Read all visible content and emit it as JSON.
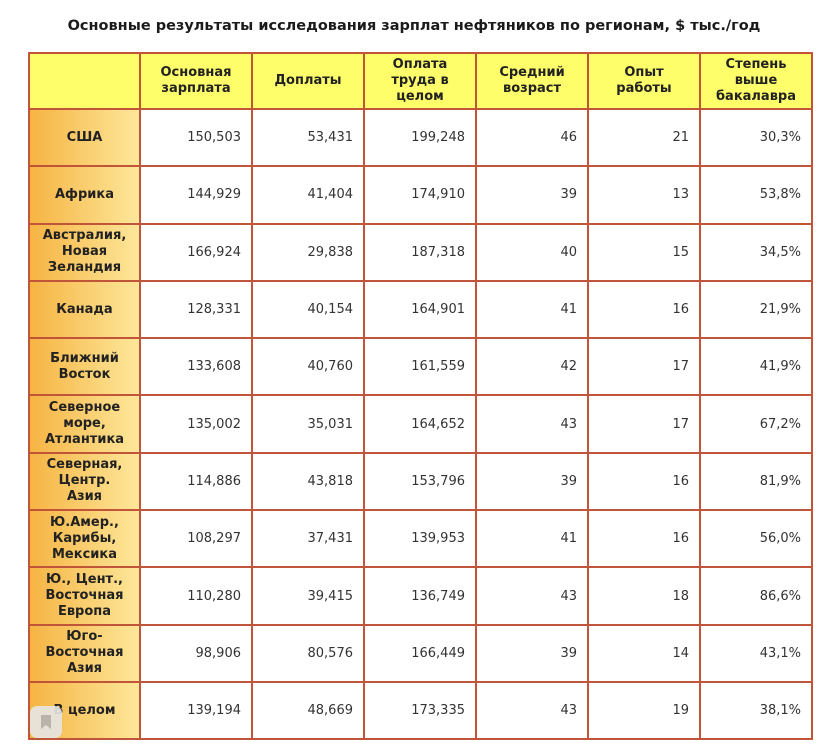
{
  "title": "Основные результаты исследования зарплат нефтяников по регионам, $ тыс./год",
  "table": {
    "columns": [
      "Основная зарплата",
      "Доплаты",
      "Оплата труда в целом",
      "Средний возраст",
      "Опыт работы",
      "Степень выше бакалавра"
    ],
    "rows": [
      [
        "США",
        "150,503",
        "53,431",
        "199,248",
        "46",
        "21",
        "30,3%"
      ],
      [
        "Африка",
        "144,929",
        "41,404",
        "174,910",
        "39",
        "13",
        "53,8%"
      ],
      [
        "Австралия, Новая Зеландия",
        "166,924",
        "29,838",
        "187,318",
        "40",
        "15",
        "34,5%"
      ],
      [
        "Канада",
        "128,331",
        "40,154",
        "164,901",
        "41",
        "16",
        "21,9%"
      ],
      [
        "Ближний Восток",
        "133,608",
        "40,760",
        "161,559",
        "42",
        "17",
        "41,9%"
      ],
      [
        "Северное море, Атлантика",
        "135,002",
        "35,031",
        "164,652",
        "43",
        "17",
        "67,2%"
      ],
      [
        "Северная, Центр. Азия",
        "114,886",
        "43,818",
        "153,796",
        "39",
        "16",
        "81,9%"
      ],
      [
        "Ю.Амер., Карибы, Мексика",
        "108,297",
        "37,431",
        "139,953",
        "41",
        "16",
        "56,0%"
      ],
      [
        "Ю., Цент., Восточная Европа",
        "110,280",
        "39,415",
        "136,749",
        "43",
        "18",
        "86,6%"
      ],
      [
        "Юго-Восточная Азия",
        "98,906",
        "80,576",
        "166,449",
        "39",
        "14",
        "43,1%"
      ],
      [
        "В целом",
        "139,194",
        "48,669",
        "173,335",
        "43",
        "19",
        "38,1%"
      ]
    ]
  }
}
